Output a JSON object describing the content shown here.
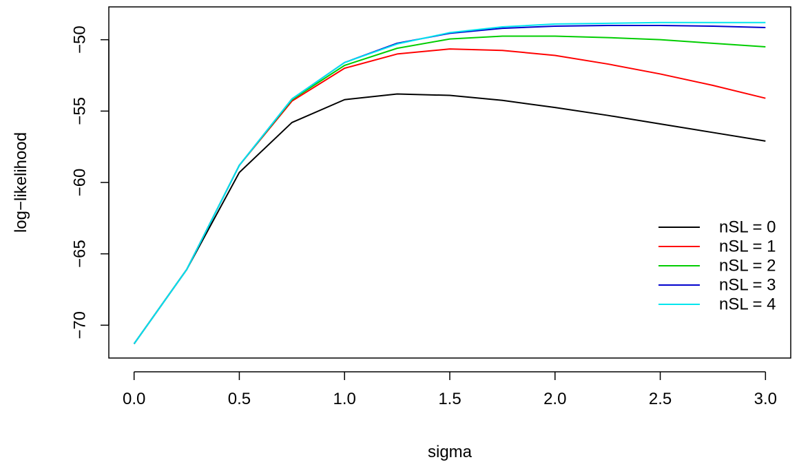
{
  "chart_data": {
    "type": "line",
    "title": "",
    "xlabel": "sigma",
    "ylabel": "log−likelihood",
    "x": [
      0.0,
      0.25,
      0.5,
      0.75,
      1.0,
      1.25,
      1.5,
      1.75,
      2.0,
      2.25,
      2.5,
      2.75,
      3.0
    ],
    "xlim": [
      -0.12,
      3.12
    ],
    "ylim": [
      -72.3,
      -47.7
    ],
    "xticks": [
      0.0,
      0.5,
      1.0,
      1.5,
      2.0,
      2.5,
      3.0
    ],
    "xtick_labels": [
      "0.0",
      "0.5",
      "1.0",
      "1.5",
      "2.0",
      "2.5",
      "3.0"
    ],
    "yticks": [
      -70,
      -65,
      -60,
      -55,
      -50
    ],
    "ytick_labels": [
      "−70",
      "−65",
      "−60",
      "−55",
      "−50"
    ],
    "grid": false,
    "legend_position": "bottom-right",
    "series": [
      {
        "name": "nSL = 0",
        "color": "#000000",
        "values": [
          -71.3,
          -66.1,
          -59.3,
          -55.8,
          -54.2,
          -53.8,
          -53.9,
          -54.25,
          -54.75,
          -55.3,
          -55.9,
          -56.5,
          -57.1
        ]
      },
      {
        "name": "nSL = 1",
        "color": "#ff0000",
        "values": [
          -71.3,
          -66.1,
          -58.8,
          -54.3,
          -52.0,
          -51.0,
          -50.65,
          -50.75,
          -51.1,
          -51.7,
          -52.4,
          -53.2,
          -54.1
        ]
      },
      {
        "name": "nSL = 2",
        "color": "#00cd00",
        "values": [
          -71.3,
          -66.1,
          -58.8,
          -54.2,
          -51.8,
          -50.6,
          -49.95,
          -49.75,
          -49.75,
          -49.85,
          -50.0,
          -50.25,
          -50.5
        ]
      },
      {
        "name": "nSL = 3",
        "color": "#0000cd",
        "values": [
          -71.3,
          -66.1,
          -58.8,
          -54.15,
          -51.6,
          -50.25,
          -49.55,
          -49.2,
          -49.05,
          -49.0,
          -49.0,
          -49.05,
          -49.15
        ]
      },
      {
        "name": "nSL = 4",
        "color": "#00e5ee",
        "values": [
          -71.3,
          -66.1,
          -58.8,
          -54.15,
          -51.6,
          -50.3,
          -49.5,
          -49.1,
          -48.9,
          -48.85,
          -48.8,
          -48.8,
          -48.8
        ]
      }
    ]
  }
}
